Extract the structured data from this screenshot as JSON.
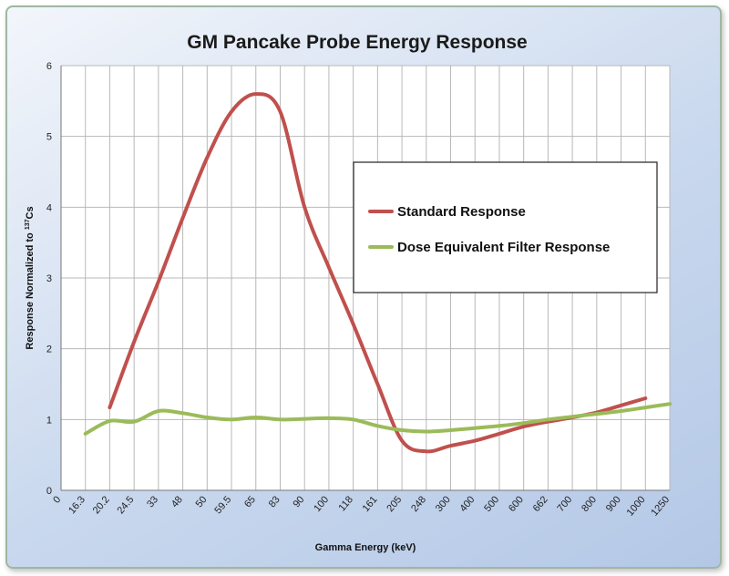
{
  "chart_data": {
    "type": "line",
    "title": "GM Pancake Probe Energy Response",
    "xlabel": "Gamma Energy (keV)",
    "ylabel": "Response Normalized to 137Cs",
    "ylabel_main": "Response Normalized to ",
    "ylabel_sup": "137",
    "ylabel_tail": "Cs",
    "ylim": [
      0,
      6
    ],
    "yticks": [
      0,
      1,
      2,
      3,
      4,
      5,
      6
    ],
    "grid": true,
    "legend_position": "right",
    "categories": [
      "0",
      "16.3",
      "20.2",
      "24.5",
      "33",
      "48",
      "50",
      "59.5",
      "65",
      "83",
      "90",
      "100",
      "118",
      "161",
      "205",
      "248",
      "300",
      "400",
      "500",
      "600",
      "662",
      "700",
      "800",
      "900",
      "1000",
      "1250"
    ],
    "series": [
      {
        "name": "Standard Response",
        "color": "#c0504d",
        "values": [
          null,
          null,
          1.17,
          2.1,
          2.95,
          3.85,
          4.7,
          5.35,
          5.6,
          5.35,
          4.0,
          3.15,
          2.35,
          1.5,
          0.7,
          0.55,
          0.63,
          0.7,
          0.8,
          0.9,
          0.97,
          1.03,
          1.1,
          1.2,
          1.3,
          null
        ]
      },
      {
        "name": "Dose Equivalent Filter Response",
        "color": "#9bbb59",
        "values": [
          null,
          0.8,
          0.98,
          0.97,
          1.12,
          1.09,
          1.03,
          1.0,
          1.03,
          1.0,
          1.01,
          1.02,
          1.0,
          0.91,
          0.85,
          0.83,
          0.85,
          0.88,
          0.91,
          0.95,
          1.0,
          1.04,
          1.08,
          1.12,
          1.17,
          1.22
        ]
      }
    ]
  }
}
